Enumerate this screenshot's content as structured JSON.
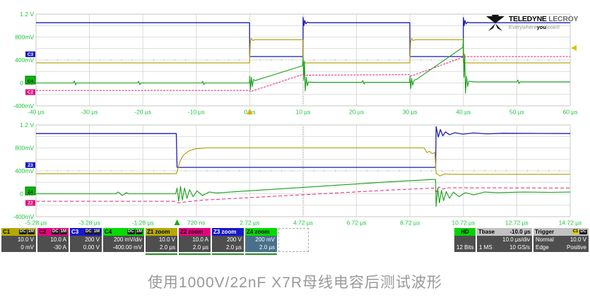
{
  "caption": "使用1000V/22nF X7R母线电容后测试波形",
  "logo": {
    "brand1": "TELEDYNE",
    "brand2": " LECROY",
    "tag1": "Everywhere",
    "tag2": "you",
    "tag3": "look",
    "mark": "®"
  },
  "colors": {
    "c1": "#ac9c00",
    "c2": "#e0257d",
    "c3": "#1c1cb0",
    "c4": "#18a018",
    "axis_label": "#1ec83c",
    "grid": "#cfd4cf",
    "trigger_top": "#f0a500",
    "trigger_bottom": "#00b400"
  },
  "panels": [
    {
      "name": "main-timebase",
      "t_min": -40,
      "t_max": 60,
      "v_min": -0.4,
      "v_max": 1.2,
      "x_labels": [
        "-40 µs",
        "-30 µs",
        "-20 µs",
        "-10 µs",
        "0 µs",
        "10 µs",
        "20 µs",
        "30 µs",
        "40 µs",
        "50 µs",
        "60 µs"
      ],
      "y_labels": [
        "1.2 V",
        "800mV",
        "400mV",
        "0 mV",
        "-400mV"
      ],
      "trigger_t": 0,
      "right_marker_v": 0.61,
      "tags": [
        {
          "label": "C3",
          "v": 0.5,
          "color": "#1818c8",
          "text": "#fff",
          "big": false
        },
        {
          "label": "C4",
          "v": 0.05,
          "color": "#00c000",
          "text": "#000",
          "big": true
        },
        {
          "label": "C2",
          "v": -0.16,
          "color": "#e8007e",
          "text": "#fff",
          "big": false
        }
      ],
      "series": [
        {
          "name": "C3",
          "color": "#1c1cb0",
          "width": 1.3,
          "dash": "",
          "points": [
            [
              -40,
              1.05
            ],
            [
              -0.03,
              1.05
            ],
            [
              0,
              0.46
            ],
            [
              9.97,
              0.46
            ],
            [
              10,
              1.14
            ],
            [
              10.15,
              1.0
            ],
            [
              10.3,
              1.09
            ],
            [
              10.5,
              1.03
            ],
            [
              10.8,
              1.06
            ],
            [
              11.2,
              1.05
            ],
            [
              29.97,
              1.05
            ],
            [
              30,
              0.46
            ],
            [
              39.97,
              0.46
            ],
            [
              40,
              1.14
            ],
            [
              40.15,
              1.0
            ],
            [
              40.3,
              1.09
            ],
            [
              40.5,
              1.03
            ],
            [
              40.8,
              1.06
            ],
            [
              41.2,
              1.05
            ],
            [
              60,
              1.05
            ]
          ]
        },
        {
          "name": "C1",
          "color": "#ac9c00",
          "width": 1.1,
          "dash": "",
          "points": [
            [
              -40,
              0.35
            ],
            [
              -0.02,
              0.35
            ],
            [
              0.1,
              0.7
            ],
            [
              0.3,
              0.78
            ],
            [
              0.6,
              0.74
            ],
            [
              1,
              0.755
            ],
            [
              9.97,
              0.755
            ],
            [
              10,
              0.35
            ],
            [
              29.97,
              0.35
            ],
            [
              30.1,
              0.7
            ],
            [
              30.3,
              0.78
            ],
            [
              30.6,
              0.74
            ],
            [
              31,
              0.755
            ],
            [
              39.97,
              0.755
            ],
            [
              40,
              0.35
            ],
            [
              60,
              0.35
            ]
          ]
        },
        {
          "name": "C4",
          "color": "#18a018",
          "width": 1.1,
          "dash": "",
          "points": [
            [
              -40,
              0
            ],
            [
              -33,
              0
            ],
            [
              -32.8,
              0.035
            ],
            [
              -32.6,
              -0.035
            ],
            [
              -32.4,
              0
            ],
            [
              -21,
              0
            ],
            [
              -20.8,
              0.03
            ],
            [
              -20.6,
              -0.03
            ],
            [
              -20.4,
              0
            ],
            [
              -9,
              0
            ],
            [
              -8.8,
              0.03
            ],
            [
              -8.6,
              -0.03
            ],
            [
              -8.4,
              0
            ],
            [
              -0.05,
              0
            ],
            [
              0,
              0.12
            ],
            [
              0.15,
              -0.12
            ],
            [
              0.3,
              0.1
            ],
            [
              0.5,
              -0.06
            ],
            [
              0.7,
              0.06
            ],
            [
              1,
              0.04
            ],
            [
              9.9,
              0.3
            ],
            [
              10,
              0.45
            ],
            [
              10.1,
              0.05
            ],
            [
              10.25,
              0.38
            ],
            [
              10.4,
              -0.14
            ],
            [
              10.6,
              0.1
            ],
            [
              10.8,
              -0.05
            ],
            [
              11,
              0.02
            ],
            [
              12,
              0.01
            ],
            [
              21,
              0.01
            ],
            [
              21.2,
              0.04
            ],
            [
              21.4,
              -0.02
            ],
            [
              21.6,
              0.01
            ],
            [
              29.95,
              0.01
            ],
            [
              30,
              0.12
            ],
            [
              30.15,
              -0.1
            ],
            [
              30.3,
              0.08
            ],
            [
              30.5,
              -0.04
            ],
            [
              30.8,
              0.05
            ],
            [
              31.2,
              0.06
            ],
            [
              39.9,
              0.62
            ],
            [
              40,
              0.78
            ],
            [
              40.1,
              0.1
            ],
            [
              40.25,
              0.5
            ],
            [
              40.4,
              -0.18
            ],
            [
              40.6,
              0.12
            ],
            [
              40.8,
              -0.06
            ],
            [
              41,
              0.03
            ],
            [
              42,
              0.02
            ],
            [
              50,
              0.02
            ],
            [
              50.2,
              0.05
            ],
            [
              50.4,
              -0.01
            ],
            [
              50.6,
              0.02
            ],
            [
              60,
              0.02
            ]
          ]
        },
        {
          "name": "C2",
          "color": "#e0257d",
          "width": 1.0,
          "dash": "3,1.5",
          "points": [
            [
              -40,
              -0.13
            ],
            [
              -0.1,
              -0.13
            ],
            [
              0.2,
              -0.155
            ],
            [
              0.5,
              -0.14
            ],
            [
              10,
              0.15
            ],
            [
              10.3,
              0.135
            ],
            [
              29.9,
              0.145
            ],
            [
              30.2,
              0.12
            ],
            [
              40,
              0.45
            ],
            [
              40.3,
              0.46
            ],
            [
              60,
              0.46
            ]
          ]
        }
      ]
    },
    {
      "name": "zoom-timebase",
      "t_min": -5.28,
      "t_max": 14.72,
      "v_min": -0.4,
      "v_max": 1.2,
      "x_labels": [
        "-5.28 µs",
        "-3.28 µs",
        "-1.28 µs",
        "720 ns",
        "2.72 µs",
        "4.72 µs",
        "6.72 µs",
        "8.72 µs",
        "10.72 µs",
        "12.72 µs",
        "14.72 µs"
      ],
      "y_labels": [
        "1.2 V",
        "800mV",
        "400mV",
        "0 mV",
        "-400mV"
      ],
      "trigger_t": 0,
      "right_marker_v": null,
      "tags": [
        {
          "label": "Z3",
          "v": 0.5,
          "color": "#1818c8",
          "text": "#fff",
          "big": false
        },
        {
          "label": "Z4",
          "v": 0.05,
          "color": "#00c000",
          "text": "#000",
          "big": true
        },
        {
          "label": "Z2",
          "v": -0.16,
          "color": "#e8007e",
          "text": "#fff",
          "big": false
        }
      ],
      "series": [
        {
          "name": "Z3",
          "color": "#1c1cb0",
          "width": 1.3,
          "dash": "",
          "points": [
            [
              -5.28,
              1.05
            ],
            [
              -0.03,
              1.05
            ],
            [
              0,
              0.46
            ],
            [
              9.68,
              0.46
            ],
            [
              9.7,
              1.17
            ],
            [
              9.78,
              0.99
            ],
            [
              9.86,
              1.12
            ],
            [
              9.95,
              1.01
            ],
            [
              10.05,
              1.08
            ],
            [
              10.2,
              1.03
            ],
            [
              10.4,
              1.065
            ],
            [
              10.7,
              1.04
            ],
            [
              11.1,
              1.06
            ],
            [
              11.6,
              1.045
            ],
            [
              12.2,
              1.055
            ],
            [
              14.72,
              1.05
            ]
          ]
        },
        {
          "name": "Z1",
          "color": "#ac9c00",
          "width": 1.1,
          "dash": "",
          "points": [
            [
              -5.28,
              0.35
            ],
            [
              -0.02,
              0.35
            ],
            [
              0.1,
              0.56
            ],
            [
              0.25,
              0.68
            ],
            [
              0.45,
              0.75
            ],
            [
              0.7,
              0.785
            ],
            [
              1.1,
              0.8
            ],
            [
              9.25,
              0.8
            ],
            [
              9.35,
              0.72
            ],
            [
              9.45,
              0.74
            ],
            [
              9.55,
              0.7
            ],
            [
              9.65,
              0.72
            ],
            [
              9.7,
              0.36
            ],
            [
              9.85,
              0.31
            ],
            [
              10,
              0.345
            ],
            [
              10.3,
              0.34
            ],
            [
              14.72,
              0.34
            ]
          ]
        },
        {
          "name": "Z4",
          "color": "#18a018",
          "width": 1.1,
          "dash": "",
          "points": [
            [
              -5.28,
              0
            ],
            [
              -2.3,
              0
            ],
            [
              -2.2,
              0.03
            ],
            [
              -2.05,
              -0.03
            ],
            [
              -1.9,
              0.02
            ],
            [
              -1.8,
              0
            ],
            [
              -0.05,
              0
            ],
            [
              0,
              0.1
            ],
            [
              0.06,
              -0.13
            ],
            [
              0.13,
              0.13
            ],
            [
              0.2,
              -0.11
            ],
            [
              0.28,
              0.1
            ],
            [
              0.37,
              -0.08
            ],
            [
              0.47,
              0.07
            ],
            [
              0.6,
              -0.05
            ],
            [
              0.75,
              0.05
            ],
            [
              0.95,
              -0.03
            ],
            [
              1.2,
              0.03
            ],
            [
              1.5,
              0.015
            ],
            [
              2,
              0.03
            ],
            [
              3,
              0.06
            ],
            [
              4,
              0.09
            ],
            [
              5,
              0.12
            ],
            [
              6,
              0.15
            ],
            [
              7,
              0.18
            ],
            [
              8,
              0.21
            ],
            [
              9,
              0.235
            ],
            [
              9.6,
              0.25
            ],
            [
              9.68,
              0.25
            ],
            [
              9.7,
              -0.22
            ],
            [
              9.76,
              0.1
            ],
            [
              9.82,
              -0.16
            ],
            [
              9.9,
              0.06
            ],
            [
              9.98,
              -0.12
            ],
            [
              10.08,
              0.04
            ],
            [
              10.2,
              -0.08
            ],
            [
              10.35,
              0.03
            ],
            [
              10.55,
              -0.05
            ],
            [
              10.8,
              0.02
            ],
            [
              11.1,
              -0.02
            ],
            [
              11.5,
              0.03
            ],
            [
              12,
              0.02
            ],
            [
              13,
              0.03
            ],
            [
              14,
              0.025
            ],
            [
              14.72,
              0.03
            ]
          ]
        },
        {
          "name": "Z2",
          "color": "#e0257d",
          "width": 1.0,
          "dash": "5,3",
          "points": [
            [
              -5.28,
              -0.13
            ],
            [
              -0.1,
              -0.13
            ],
            [
              0.05,
              -0.16
            ],
            [
              0.25,
              -0.145
            ],
            [
              1,
              -0.11
            ],
            [
              2,
              -0.085
            ],
            [
              3,
              -0.06
            ],
            [
              4,
              -0.035
            ],
            [
              5,
              -0.01
            ],
            [
              6,
              0.015
            ],
            [
              7,
              0.04
            ],
            [
              8,
              0.065
            ],
            [
              9,
              0.085
            ],
            [
              9.6,
              0.1
            ],
            [
              9.7,
              0.03
            ],
            [
              9.8,
              0.12
            ],
            [
              9.95,
              0.08
            ],
            [
              10.1,
              0.105
            ],
            [
              14.72,
              0.1
            ]
          ]
        }
      ]
    }
  ],
  "channels": [
    {
      "id": "C1",
      "badge1": "DC",
      "badge2": "1M",
      "line1": "10.0 V",
      "line2": "0 mV"
    },
    {
      "id": "C2",
      "badge1": "DC",
      "badge2": "1M",
      "line1": "10.0 A",
      "line2": "-30 A"
    },
    {
      "id": "C3",
      "badge1": "DC",
      "badge2": "1M",
      "line1": "200 V",
      "line2": "0.00 V"
    },
    {
      "id": "C4",
      "badge1": "DC",
      "badge2": "1M",
      "line1": "200 mV/div",
      "line2": "-400.00 mV"
    }
  ],
  "zooms": [
    {
      "id": "Z1 zoom",
      "line1": "10.0 V",
      "line2": "2.0 µs"
    },
    {
      "id": "Z2 zoom",
      "line1": "10.0 A",
      "line2": "2.0 µs"
    },
    {
      "id": "Z3 zoom",
      "line1": "200 V",
      "line2": "2.0 µs"
    },
    {
      "id": "Z4 zoom",
      "line1": "200 mV",
      "line2": "2.0 µs"
    }
  ],
  "hd": {
    "label": "HD",
    "bits": "12 Bits"
  },
  "timebase": {
    "title": "Tbase",
    "offset": "-10.0 µs",
    "scale": "10.0 µs/div",
    "samples": "1 MS",
    "rate": "10 GS/s"
  },
  "trigger": {
    "title": "Trigger",
    "badge1": "C1",
    "badge2": "DC",
    "mode": "Normal",
    "level": "10.0 V",
    "type": "Edge",
    "slope": "Positive"
  }
}
